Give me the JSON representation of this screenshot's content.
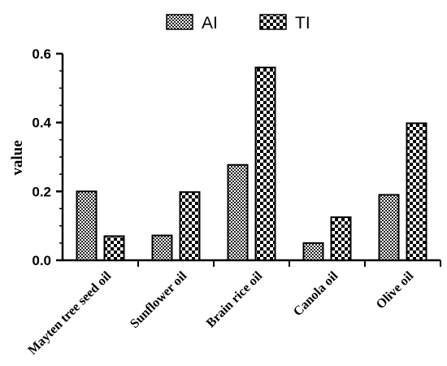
{
  "chart_data": {
    "type": "bar",
    "categories": [
      "Mayten tree seed oil",
      "Sunflower oil",
      "Brain rice oil",
      "Canola oil",
      "Olive oil"
    ],
    "series": [
      {
        "name": "AI",
        "values": [
          0.2,
          0.072,
          0.277,
          0.05,
          0.19
        ],
        "pattern": "fine-checker"
      },
      {
        "name": "TI",
        "values": [
          0.07,
          0.198,
          0.56,
          0.125,
          0.398
        ],
        "pattern": "coarse-checker"
      }
    ],
    "xlabel": "",
    "ylabel": "value",
    "ylim": [
      0,
      0.6
    ],
    "yticks": [
      "0.0",
      "0.2",
      "0.4",
      "0.6"
    ],
    "legend_position": "top-center",
    "grid": false
  }
}
